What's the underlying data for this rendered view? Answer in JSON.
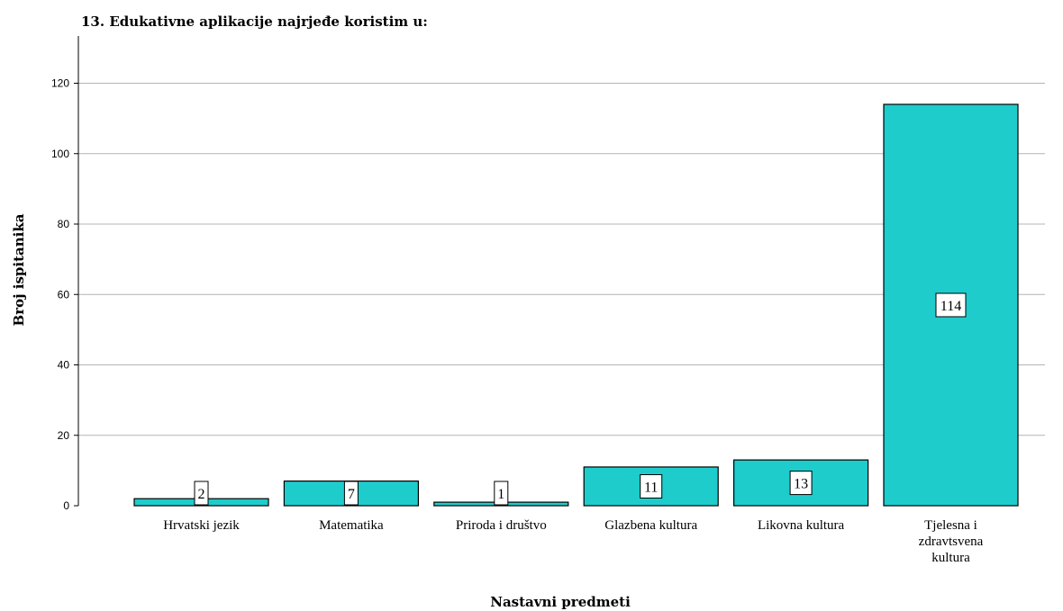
{
  "chart_data": {
    "type": "bar",
    "title": "13. Edukativne aplikacije najrjeđe koristim u:",
    "xlabel": "Nastavni predmeti",
    "ylabel": "Broj ispitanika",
    "categories": [
      [
        "Hrvatski jezik"
      ],
      [
        "Matematika"
      ],
      [
        "Priroda i društvo"
      ],
      [
        "Glazbena kultura"
      ],
      [
        "Likovna kultura"
      ],
      [
        "Tjelesna i",
        "zdravtsvena",
        "kultura"
      ]
    ],
    "values": [
      2,
      7,
      1,
      11,
      13,
      114
    ],
    "ylim": [
      0,
      132
    ],
    "yticks": [
      0,
      20,
      40,
      60,
      80,
      100,
      120
    ],
    "grid": true,
    "legend": "none",
    "colors": {
      "bar": "#1fcccc",
      "bar_stroke": "#000000",
      "grid": "#b4b4b4",
      "axis": "#000000",
      "label_box": "#ffffff"
    }
  }
}
